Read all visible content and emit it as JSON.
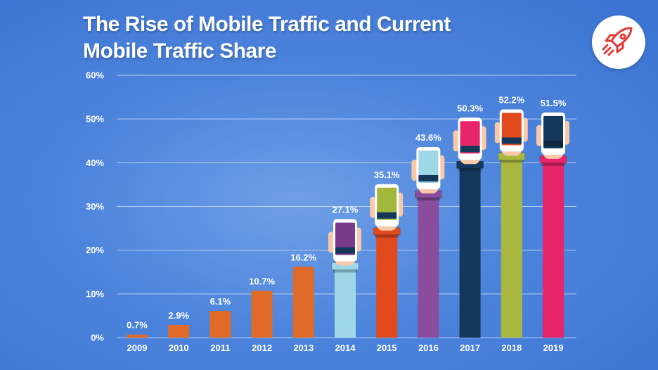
{
  "chart_data": {
    "type": "bar",
    "title_line1": "The Rise of Mobile Traffic and Current",
    "title_line2": "Mobile Traffic Share",
    "categories": [
      "2009",
      "2010",
      "2011",
      "2012",
      "2013",
      "2014",
      "2015",
      "2016",
      "2017",
      "2018",
      "2019"
    ],
    "values": [
      0.7,
      2.9,
      6.1,
      10.7,
      16.2,
      27.1,
      35.1,
      43.6,
      50.3,
      52.2,
      51.5
    ],
    "value_labels": [
      "0.7%",
      "2.9%",
      "6.1%",
      "10.7%",
      "16.2%",
      "27.1%",
      "35.1%",
      "43.6%",
      "50.3%",
      "52.2%",
      "51.5%"
    ],
    "y_ticks": [
      0,
      10,
      20,
      30,
      40,
      50,
      60
    ],
    "y_tick_labels": [
      "0%",
      "10%",
      "20%",
      "30%",
      "40%",
      "50%",
      "60%"
    ],
    "ylim": [
      0,
      60
    ],
    "xlabel": "",
    "ylabel": "",
    "grid": true,
    "bar_colors": [
      "#e06a28",
      "#e06a28",
      "#e06a28",
      "#e06a28",
      "#e06a28",
      "#9ed8e6",
      "#e04a1c",
      "#8a4c9c",
      "#13385c",
      "#a9b840",
      "#e8246a"
    ],
    "phone_screen_colors": [
      "",
      "",
      "",
      "",
      "",
      "#7a3a8c",
      "#a2b83c",
      "#9ed8e6",
      "#e8246a",
      "#e04a1c",
      "#13385c"
    ],
    "phone_screen_band_colors": [
      "",
      "",
      "",
      "",
      "",
      "#13385c",
      "#13385c",
      "#13385c",
      "#13385c",
      "#13385c",
      "#0d2640"
    ]
  },
  "colors": {
    "background": "#4c84dc",
    "grid": "#c9daf3",
    "logo_accent": "#e53936"
  },
  "logo_icon": "rocket-icon"
}
